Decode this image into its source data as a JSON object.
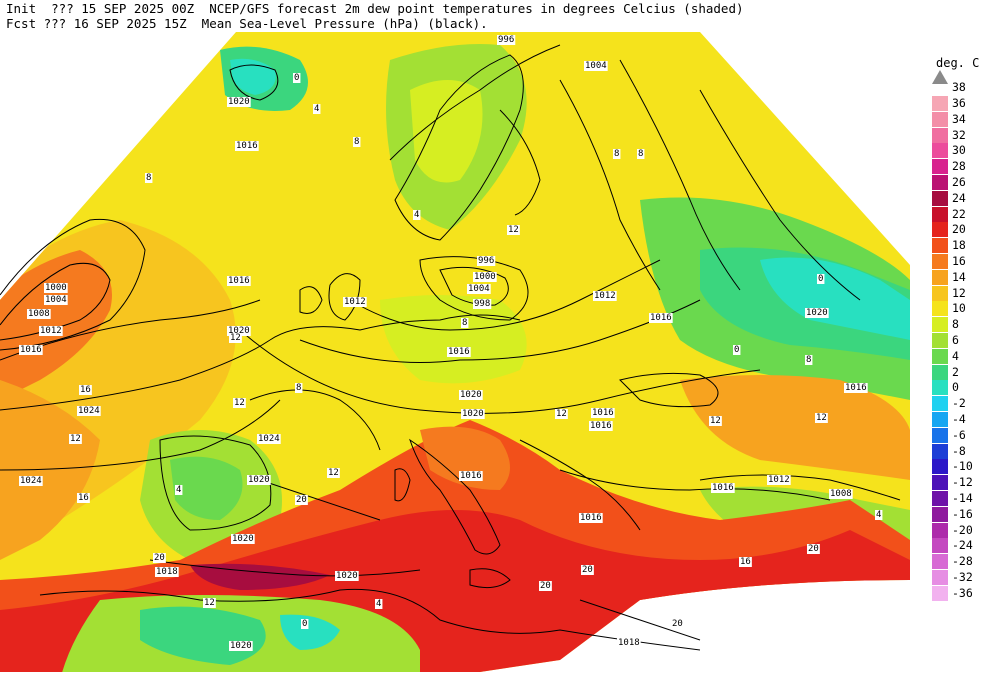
{
  "header": {
    "line1": "Init  ??? 15 SEP 2025 00Z  NCEP/GFS forecast 2m dew point temperatures in degrees Celcius (shaded)",
    "line2": "Fcst ??? 16 SEP 2025 15Z  Mean Sea-Level Pressure (hPa) (black)."
  },
  "legend": {
    "title": "deg. C",
    "top_label": "38",
    "items": [
      {
        "label": "36",
        "color": "#f6a6b4"
      },
      {
        "label": "34",
        "color": "#f38ea8"
      },
      {
        "label": "32",
        "color": "#f06ea0"
      },
      {
        "label": "30",
        "color": "#ec4c9c"
      },
      {
        "label": "28",
        "color": "#d8238e"
      },
      {
        "label": "26",
        "color": "#bb1273"
      },
      {
        "label": "24",
        "color": "#a70d3f"
      },
      {
        "label": "22",
        "color": "#c8102a"
      },
      {
        "label": "20",
        "color": "#e5241d"
      },
      {
        "label": "18",
        "color": "#f2501a"
      },
      {
        "label": "16",
        "color": "#f57a1f"
      },
      {
        "label": "14",
        "color": "#f7a31f"
      },
      {
        "label": "12",
        "color": "#f7c51f"
      },
      {
        "label": "10",
        "color": "#f5e31c"
      },
      {
        "label": "8",
        "color": "#d6ee22"
      },
      {
        "label": "6",
        "color": "#a3e034"
      },
      {
        "label": "4",
        "color": "#6ad94e"
      },
      {
        "label": "2",
        "color": "#3bd67e"
      },
      {
        "label": "0",
        "color": "#28e0c0"
      },
      {
        "label": "-2",
        "color": "#1fd1f0"
      },
      {
        "label": "-4",
        "color": "#16a6f2"
      },
      {
        "label": "-6",
        "color": "#1873ea"
      },
      {
        "label": "-8",
        "color": "#1d3ed6"
      },
      {
        "label": "-10",
        "color": "#2b18c8"
      },
      {
        "label": "-12",
        "color": "#4c12b8"
      },
      {
        "label": "-14",
        "color": "#6e12a8"
      },
      {
        "label": "-16",
        "color": "#8f1a9e"
      },
      {
        "label": "-20",
        "color": "#ad2aab"
      },
      {
        "label": "-24",
        "color": "#c448c0"
      },
      {
        "label": "-28",
        "color": "#d76ad4"
      },
      {
        "label": "-32",
        "color": "#e68ee3"
      },
      {
        "label": "-36",
        "color": "#f2b2ef"
      }
    ]
  },
  "pressure_labels": [
    {
      "text": "996"
    },
    {
      "text": "1004"
    },
    {
      "text": "1020"
    },
    {
      "text": "1016"
    },
    {
      "text": "1016"
    },
    {
      "text": "1000"
    },
    {
      "text": "1004"
    },
    {
      "text": "1008"
    },
    {
      "text": "1012"
    },
    {
      "text": "1016"
    },
    {
      "text": "1012"
    },
    {
      "text": "1020"
    },
    {
      "text": "996"
    },
    {
      "text": "1000"
    },
    {
      "text": "1004"
    },
    {
      "text": "998"
    },
    {
      "text": "1012"
    },
    {
      "text": "1016"
    },
    {
      "text": "1020"
    },
    {
      "text": "1016"
    },
    {
      "text": "1024"
    },
    {
      "text": "1024"
    },
    {
      "text": "1024"
    },
    {
      "text": "1020"
    },
    {
      "text": "1020"
    },
    {
      "text": "1020"
    },
    {
      "text": "1016"
    },
    {
      "text": "1016"
    },
    {
      "text": "1016"
    },
    {
      "text": "1016"
    },
    {
      "text": "1012"
    },
    {
      "text": "1008"
    },
    {
      "text": "1016"
    },
    {
      "text": "1016"
    },
    {
      "text": "1020"
    },
    {
      "text": "1020"
    },
    {
      "text": "1018"
    },
    {
      "text": "1018"
    },
    {
      "text": "1020"
    }
  ],
  "dewpoint_labels": [
    {
      "text": "0"
    },
    {
      "text": "4"
    },
    {
      "text": "8"
    },
    {
      "text": "8"
    },
    {
      "text": "12"
    },
    {
      "text": "16"
    },
    {
      "text": "12"
    },
    {
      "text": "16"
    },
    {
      "text": "12"
    },
    {
      "text": "8"
    },
    {
      "text": "12"
    },
    {
      "text": "20"
    },
    {
      "text": "20"
    },
    {
      "text": "20"
    },
    {
      "text": "20"
    },
    {
      "text": "20"
    },
    {
      "text": "12"
    },
    {
      "text": "4"
    },
    {
      "text": "0"
    },
    {
      "text": "4"
    },
    {
      "text": "8"
    },
    {
      "text": "12"
    },
    {
      "text": "4"
    },
    {
      "text": "0"
    },
    {
      "text": "8"
    },
    {
      "text": "12"
    },
    {
      "text": "20"
    },
    {
      "text": "8"
    },
    {
      "text": "12"
    },
    {
      "text": "16"
    },
    {
      "text": "4"
    },
    {
      "text": "8"
    },
    {
      "text": "0"
    },
    {
      "text": "12"
    }
  ]
}
